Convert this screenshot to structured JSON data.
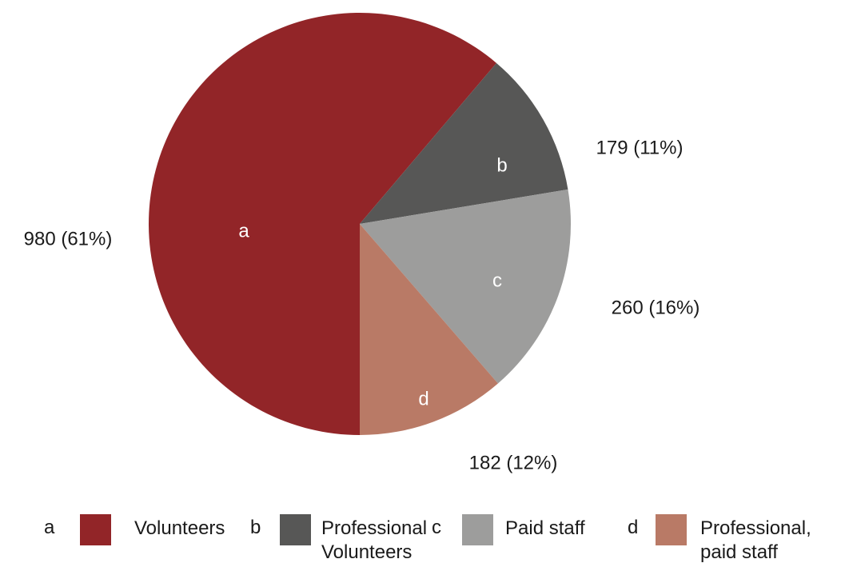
{
  "chart_data": {
    "type": "pie",
    "categories": [
      "a",
      "b",
      "c",
      "d"
    ],
    "series": [
      {
        "name": "Volunteers",
        "color": "#922528"
      },
      {
        "name": "Professional Volunteers",
        "color": "#575756"
      },
      {
        "name": "Paid staff",
        "color": "#9d9d9c"
      },
      {
        "name": "Professional, paid staff",
        "color": "#b97a66"
      }
    ],
    "values": [
      980,
      179,
      260,
      182
    ],
    "value_labels": [
      "980 (61%)",
      "179 (11%)",
      "260 (16%)",
      "182 (12%)"
    ]
  }
}
